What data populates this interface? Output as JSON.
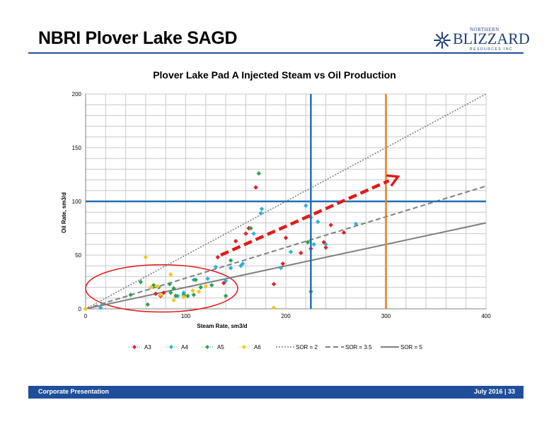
{
  "slide": {
    "title": "NBRI Plover Lake SAGD"
  },
  "logo": {
    "top_text": "NORTHERN",
    "main_text": "BLIZZARD",
    "sub_text": "RESOURCES INC"
  },
  "footer": {
    "left": "Corporate Presentation",
    "right": "July 2016 | 33"
  },
  "colors": {
    "accent": "#1f4e9b",
    "A3": "#e21e26",
    "A4": "#2eb0d8",
    "A5": "#2ba24c",
    "A6": "#f5c518",
    "sor": "#7f7f7f",
    "ref_blue": "#1f6fb5",
    "ref_orange": "#ee7d1a",
    "arrow": "#e01b1b",
    "ellipse": "#e01b1b"
  },
  "chart_data": {
    "type": "scatter",
    "title": "Plover Lake Pad A Injected Steam vs Oil Production",
    "xlabel": "Steam Rate, sm3/d",
    "ylabel": "Oil Rate, sm3/d",
    "xlim": [
      0,
      400
    ],
    "ylim": [
      0,
      200
    ],
    "xticks": [
      0,
      100,
      200,
      300,
      400
    ],
    "yticks": [
      0,
      50,
      100,
      150,
      200
    ],
    "xtick_labels": [
      "0",
      "100",
      "200",
      "300",
      "400"
    ],
    "ytick_labels": [
      "0",
      "50",
      "100",
      "150",
      "200"
    ],
    "grid": true,
    "legend_position": "bottom",
    "series": [
      {
        "name": "A3",
        "marker": "diamond",
        "points": [
          [
            70,
            14
          ],
          [
            75,
            12
          ],
          [
            78,
            15
          ],
          [
            132,
            48
          ],
          [
            138,
            24
          ],
          [
            150,
            63
          ],
          [
            160,
            70
          ],
          [
            163,
            75
          ],
          [
            170,
            113
          ],
          [
            188,
            23
          ],
          [
            197,
            42
          ],
          [
            200,
            66
          ],
          [
            215,
            52
          ],
          [
            225,
            56
          ],
          [
            238,
            62
          ],
          [
            240,
            57
          ],
          [
            245,
            78
          ],
          [
            258,
            71
          ]
        ]
      },
      {
        "name": "A4",
        "marker": "diamond",
        "points": [
          [
            15,
            1
          ],
          [
            92,
            12
          ],
          [
            98,
            15
          ],
          [
            108,
            27
          ],
          [
            115,
            20
          ],
          [
            122,
            28
          ],
          [
            130,
            39
          ],
          [
            140,
            26
          ],
          [
            145,
            38
          ],
          [
            155,
            40
          ],
          [
            157,
            42
          ],
          [
            168,
            70
          ],
          [
            175,
            89
          ],
          [
            176,
            93
          ],
          [
            195,
            38
          ],
          [
            205,
            53
          ],
          [
            220,
            96
          ],
          [
            225,
            85
          ],
          [
            228,
            60
          ],
          [
            232,
            81
          ],
          [
            240,
            60
          ],
          [
            270,
            79
          ]
        ]
      },
      {
        "name": "A5",
        "marker": "diamond",
        "points": [
          [
            45,
            13
          ],
          [
            55,
            25
          ],
          [
            62,
            4
          ],
          [
            68,
            22
          ],
          [
            73,
            20
          ],
          [
            84,
            23
          ],
          [
            85,
            15
          ],
          [
            88,
            19
          ],
          [
            90,
            12
          ],
          [
            98,
            13
          ],
          [
            102,
            12
          ],
          [
            108,
            13
          ],
          [
            110,
            27
          ],
          [
            115,
            20
          ],
          [
            126,
            22
          ],
          [
            140,
            12
          ],
          [
            145,
            45
          ],
          [
            165,
            75
          ],
          [
            173,
            126
          ],
          [
            222,
            62
          ],
          [
            225,
            16
          ]
        ]
      },
      {
        "name": "A6",
        "marker": "diamond",
        "points": [
          [
            0,
            0
          ],
          [
            60,
            48
          ],
          [
            65,
            20
          ],
          [
            72,
            21
          ],
          [
            75,
            13
          ],
          [
            85,
            32
          ],
          [
            88,
            8
          ],
          [
            98,
            11
          ],
          [
            107,
            17
          ],
          [
            113,
            16
          ],
          [
            120,
            21
          ],
          [
            188,
            1
          ]
        ]
      }
    ],
    "lines": [
      {
        "name": "SOR = 2",
        "style": "dotted",
        "slope": 0.5
      },
      {
        "name": "SOR = 3.5",
        "style": "dashed",
        "slope": 0.2857
      },
      {
        "name": "SOR = 5",
        "style": "solid",
        "slope": 0.2
      }
    ],
    "reference_lines": {
      "horizontal_y": 100,
      "vertical_x": [
        225,
        300
      ]
    },
    "annotations": {
      "arrow": {
        "from": [
          135,
          50
        ],
        "to": [
          312,
          123
        ]
      },
      "ellipse": {
        "center_x": 76,
        "center_y": 19,
        "radius_x": 76,
        "radius_y": 22
      }
    }
  }
}
